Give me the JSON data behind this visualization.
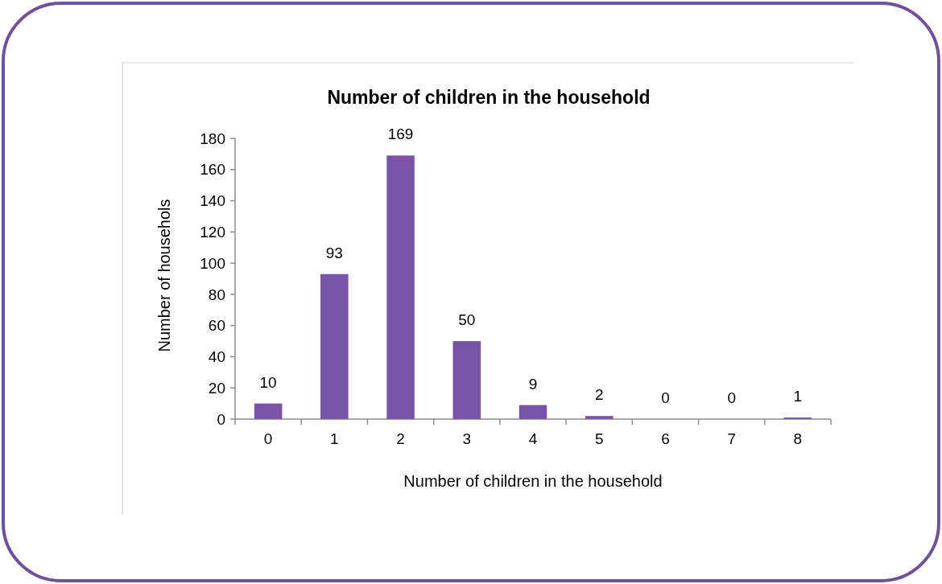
{
  "chart_data": {
    "type": "bar",
    "title": "Number of children in the household",
    "xlabel": "Number of children in the household",
    "ylabel": "Number of househols",
    "categories": [
      "0",
      "1",
      "2",
      "3",
      "4",
      "5",
      "6",
      "7",
      "8"
    ],
    "values": [
      10,
      93,
      169,
      50,
      9,
      2,
      0,
      0,
      1
    ],
    "color": "#7a52a8",
    "ylim": [
      0,
      180
    ],
    "yticks": [
      0,
      20,
      40,
      60,
      80,
      100,
      120,
      140,
      160,
      180
    ],
    "data_labels": true
  }
}
